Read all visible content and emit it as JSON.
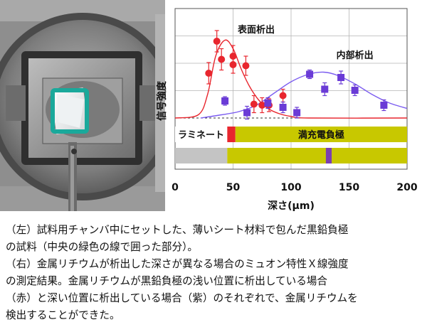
{
  "chart_data": {
    "type": "scatter",
    "title": "",
    "xlabel": "深さ(μm)",
    "ylabel": "信号強度",
    "xlim": [
      0,
      200
    ],
    "xticks": [
      0,
      50,
      100,
      150,
      200
    ],
    "grid": true,
    "series": [
      {
        "name": "表面析出",
        "color": "#e8262e",
        "marker": "circle",
        "points": [
          {
            "x": 29,
            "y": 0.42,
            "err": 0.1
          },
          {
            "x": 36,
            "y": 0.72,
            "err": 0.1
          },
          {
            "x": 40,
            "y": 0.55,
            "err": 0.1
          },
          {
            "x": 50,
            "y": 0.58,
            "err": 0.1
          },
          {
            "x": 50,
            "y": 0.5,
            "err": 0.08
          },
          {
            "x": 61,
            "y": 0.49,
            "err": 0.09
          },
          {
            "x": 68,
            "y": 0.13,
            "err": 0.08
          },
          {
            "x": 75,
            "y": 0.12,
            "err": 0.07
          },
          {
            "x": 81,
            "y": 0.12,
            "err": 0.06
          },
          {
            "x": 93,
            "y": 0.21,
            "err": 0.06
          }
        ]
      },
      {
        "name": "内部析出",
        "color": "#6a3bd6",
        "marker": "square",
        "points": [
          {
            "x": 43,
            "y": 0.16,
            "err": 0.04
          },
          {
            "x": 62,
            "y": 0.05,
            "err": 0.06
          },
          {
            "x": 80,
            "y": 0.14,
            "err": 0.05
          },
          {
            "x": 93,
            "y": 0.1,
            "err": 0.05
          },
          {
            "x": 105,
            "y": 0.05,
            "err": 0.05
          },
          {
            "x": 116,
            "y": 0.41,
            "err": 0.04
          },
          {
            "x": 129,
            "y": 0.27,
            "err": 0.06
          },
          {
            "x": 143,
            "y": 0.38,
            "err": 0.06
          },
          {
            "x": 155,
            "y": 0.26,
            "err": 0.05
          },
          {
            "x": 180,
            "y": 0.12,
            "err": 0.05
          }
        ]
      }
    ],
    "fit_curves": [
      {
        "series": "表面析出",
        "color": "#e8262e",
        "points": [
          [
            0,
            0
          ],
          [
            20,
            0.03
          ],
          [
            28,
            0.22
          ],
          [
            35,
            0.58
          ],
          [
            43,
            0.73
          ],
          [
            50,
            0.65
          ],
          [
            57,
            0.46
          ],
          [
            64,
            0.3
          ],
          [
            72,
            0.17
          ],
          [
            80,
            0.09
          ],
          [
            90,
            0.04
          ],
          [
            100,
            0.015
          ],
          [
            115,
            0
          ],
          [
            200,
            0
          ]
        ]
      },
      {
        "series": "内部析出",
        "color": "#7b5cf0",
        "points": [
          [
            22,
            0
          ],
          [
            40,
            0.03
          ],
          [
            55,
            0.06
          ],
          [
            70,
            0.12
          ],
          [
            85,
            0.23
          ],
          [
            100,
            0.34
          ],
          [
            115,
            0.41
          ],
          [
            128,
            0.43
          ],
          [
            140,
            0.4
          ],
          [
            155,
            0.32
          ],
          [
            170,
            0.22
          ],
          [
            185,
            0.14
          ],
          [
            200,
            0.09
          ]
        ]
      }
    ],
    "baseline": "dashed",
    "bar_labels": {
      "laminate": "ラミネート",
      "anode": "満充電負極"
    },
    "bar_colors": {
      "laminate": "#c4c4c4",
      "anode": "#c8c800",
      "surface_marker": "#e8262e",
      "inner_marker": "#7b3fb0"
    },
    "bar_ranges": {
      "laminate": [
        0,
        45
      ],
      "surface_marker": [
        45,
        52
      ],
      "anode_start": 52,
      "inner_marker": [
        130,
        135
      ]
    }
  },
  "photo": {
    "colors": {
      "chamber": "#5a5a5a",
      "plate": "#8c8c8c",
      "teal_frame": "#1aa99b"
    }
  },
  "caption": {
    "line1": "（左）試料用チャンバ中にセットした、薄いシート材料で包んだ黒鉛負極",
    "line2": "の試料（中央の緑色の線で囲った部分）。",
    "line3": "（右）金属リチウムが析出した深さが異なる場合のミュオン特性Ｘ線強度",
    "line4": "の測定結果。金属リチウムが黒鉛負極の浅い位置に析出している場合",
    "line5": "（赤）と深い位置に析出している場合（紫）のそれぞれで、金属リチウムを",
    "line6": "検出することができた。"
  }
}
